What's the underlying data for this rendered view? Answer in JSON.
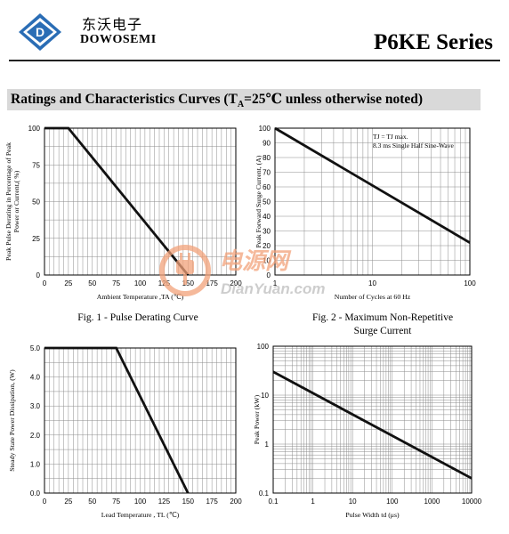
{
  "header": {
    "brand_cn": "东沃电子",
    "brand_en": "DOWOSEMI",
    "series": "P6KE Series",
    "logo_letter": "D"
  },
  "section": {
    "title_prefix": "Ratings and Characteristics Curves (T",
    "title_sub": "A",
    "title_suffix": "=25℃ unless otherwise noted)"
  },
  "watermark": {
    "cn": "电源网",
    "en": "DianYuan.com"
  },
  "captions": {
    "fig1": "Fig. 1 - Pulse Derating Curve",
    "fig2_line1": "Fig. 2 - Maximum Non-Repetitive",
    "fig2_line2": "Surge Current"
  },
  "colors": {
    "curve": "#111111",
    "grid": "#8c8c8c",
    "section_bg": "#d9d9d9",
    "watermark": "#f2a27a"
  },
  "chart_data": [
    {
      "id": "fig1",
      "type": "line",
      "title": "Fig. 1 - Pulse Derating Curve",
      "xlabel": "Ambient Temperature ,TA (℃)",
      "ylabel": "Peak Pulse Derating in Percentage of Peak Power or Current,( %)",
      "xscale": "linear",
      "yscale": "linear",
      "xlim": [
        0,
        200
      ],
      "ylim": [
        0,
        100
      ],
      "xticks": [
        0,
        25,
        50,
        75,
        100,
        125,
        150,
        175,
        200
      ],
      "yticks": [
        0,
        25,
        50,
        75,
        100
      ],
      "xtick_labels": [
        "0",
        "25",
        "50",
        "75",
        "100",
        "125",
        "150",
        "175",
        "200"
      ],
      "ytick_labels": [
        "0",
        "25",
        "50",
        "75",
        "100"
      ],
      "grid": true,
      "series": [
        {
          "x": [
            0,
            25,
            150
          ],
          "y": [
            100,
            100,
            0
          ]
        }
      ]
    },
    {
      "id": "fig2",
      "type": "line",
      "title": "Fig. 2 - Maximum Non-Repetitive Surge Current",
      "xlabel": "Number of Cycles at 60 Hz",
      "ylabel": "Peak Forward Surge Current, (A)",
      "xscale": "log",
      "yscale": "linear",
      "xlim": [
        1,
        100
      ],
      "ylim": [
        0,
        100
      ],
      "xticks": [
        1,
        10,
        100
      ],
      "yticks": [
        0,
        10,
        20,
        30,
        40,
        50,
        60,
        70,
        80,
        90,
        100
      ],
      "xtick_labels": [
        "1",
        "10",
        "100"
      ],
      "ytick_labels": [
        "0",
        "10",
        "20",
        "30",
        "40",
        "50",
        "60",
        "70",
        "80",
        "90",
        "100"
      ],
      "grid": true,
      "annotation_lines": [
        "TJ = TJ max.",
        "8.3 ms Single Half Sine-Wave"
      ],
      "series": [
        {
          "x": [
            1,
            100
          ],
          "y": [
            100,
            22
          ]
        }
      ]
    },
    {
      "id": "fig3",
      "type": "line",
      "xlabel": "Lead Temperature , TL (℃)",
      "ylabel": "Steady State Power Dissipation, (W)",
      "xscale": "linear",
      "yscale": "linear",
      "xlim": [
        0,
        200
      ],
      "ylim": [
        0,
        5
      ],
      "xticks": [
        0,
        25,
        50,
        75,
        100,
        125,
        150,
        175,
        200
      ],
      "yticks": [
        0,
        1,
        2,
        3,
        4,
        5
      ],
      "xtick_labels": [
        "0",
        "25",
        "50",
        "75",
        "100",
        "125",
        "150",
        "175",
        "200"
      ],
      "ytick_labels": [
        "0.0",
        "1.0",
        "2.0",
        "3.0",
        "4.0",
        "5.0"
      ],
      "grid": true,
      "series": [
        {
          "x": [
            0,
            75,
            150
          ],
          "y": [
            5,
            5,
            0
          ]
        }
      ]
    },
    {
      "id": "fig4",
      "type": "line",
      "xlabel": "Pulse Width td (μs)",
      "ylabel": "Peak Power (kW)",
      "xscale": "log",
      "yscale": "log",
      "xlim": [
        0.1,
        10000
      ],
      "ylim": [
        0.1,
        100
      ],
      "xticks": [
        0.1,
        1,
        10,
        100,
        1000,
        10000
      ],
      "yticks": [
        0.1,
        1,
        10,
        100
      ],
      "xtick_labels": [
        "0.1",
        "1",
        "10",
        "100",
        "1000",
        "10000"
      ],
      "ytick_labels": [
        "0.1",
        "1",
        "10",
        "100"
      ],
      "grid": true,
      "series": [
        {
          "x": [
            0.1,
            10000
          ],
          "y": [
            30,
            0.2
          ]
        }
      ]
    }
  ]
}
